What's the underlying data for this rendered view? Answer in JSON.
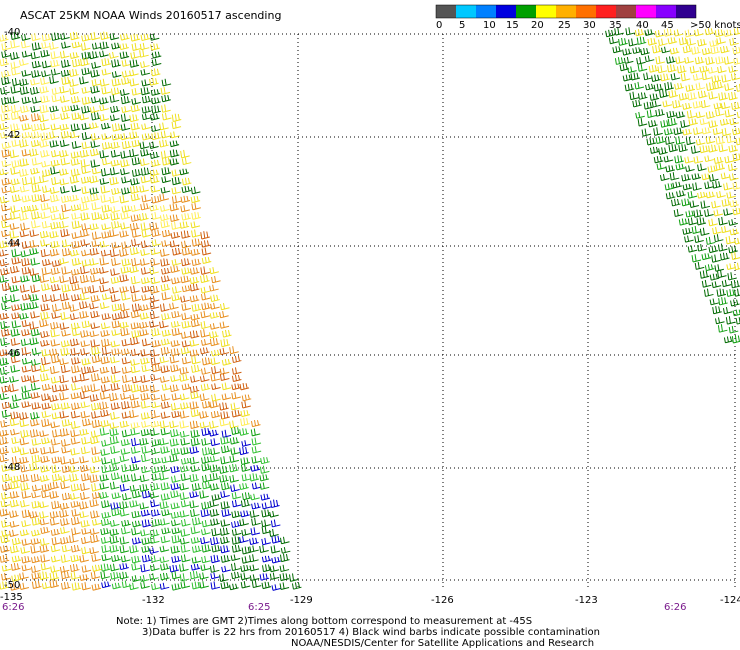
{
  "title": "ASCAT 25KM NOAA Winds 20160517 ascending",
  "legend": {
    "labels": [
      "0",
      "5",
      "10",
      "15",
      "20",
      "25",
      "30",
      "35",
      "40",
      "45",
      ">50 knots"
    ],
    "colors": [
      "#555555",
      "#00c8ff",
      "#0080ff",
      "#0000e0",
      "#00a000",
      "#ffff00",
      "#ffb000",
      "#ff7000",
      "#ff2020",
      "#a04040",
      "#ff00ff",
      "#8800ff",
      "#300090"
    ]
  },
  "lat_labels": [
    "-40",
    "-42",
    "-44",
    "-46",
    "-48",
    "-50"
  ],
  "lon_labels": [
    "-135",
    "-132",
    "-129",
    "-126",
    "-123",
    "-124"
  ],
  "times": [
    "6:26",
    "6:25",
    "6:26"
  ],
  "notes": [
    "Note: 1) Times are GMT 2)Times along bottom correspond to measurement at -45S",
    "3)Data buffer is 22 hrs from 20160517 4) Black wind barbs indicate possible contamination",
    "NOAA/NESDIS/Center for Satellite Applications and Research"
  ],
  "colors": {
    "yellow": "#f0e020",
    "lightyellow": "#ffee55",
    "orange": "#e89020",
    "darkorange": "#d06010",
    "green": "#10a010",
    "darkgreen": "#006a00",
    "lightgreen": "#30c030",
    "blue": "#0000d0"
  }
}
